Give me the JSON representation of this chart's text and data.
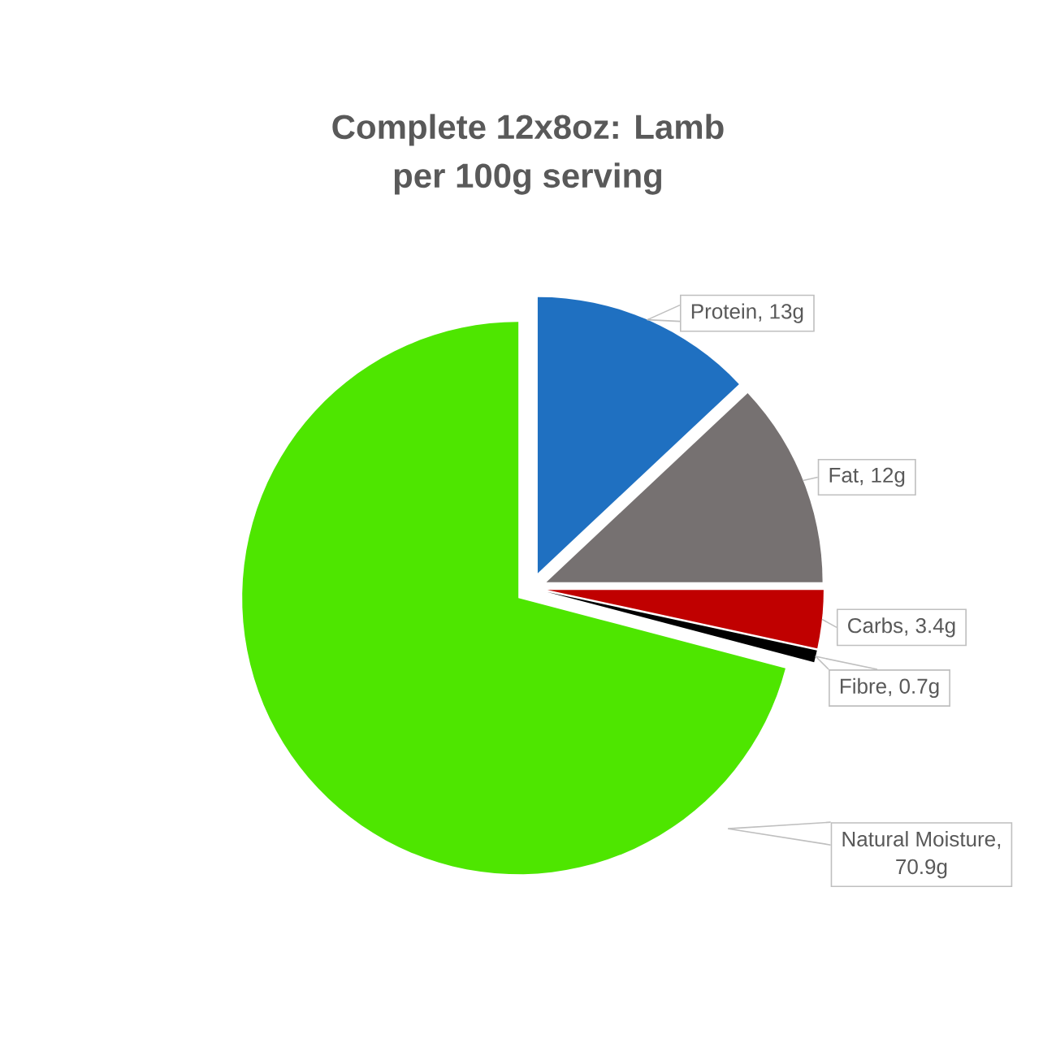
{
  "chart_data": {
    "type": "pie",
    "title": "Complete 12x8oz: Lamb per 100g serving",
    "categories": [
      "Protein",
      "Fat",
      "Carbs",
      "Fibre",
      "Natural Moisture"
    ],
    "values": [
      13,
      12,
      3.4,
      0.7,
      70.9
    ],
    "colors": [
      "#1f70c1",
      "#767171",
      "#c00000",
      "#000000",
      "#4ee600"
    ],
    "value_labels": [
      ", 13g",
      ", 12g",
      ", 3.4g",
      ", 0.7g",
      ", 70.9g"
    ]
  }
}
